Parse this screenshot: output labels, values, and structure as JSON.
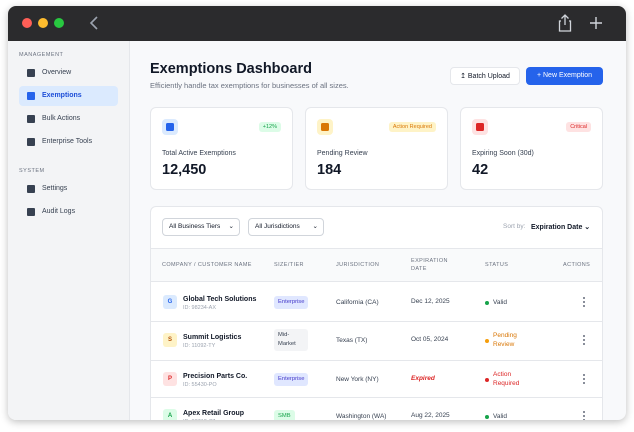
{
  "sidebar": {
    "sections": [
      {
        "title": "MANAGEMENT",
        "items": [
          "Overview",
          "Exemptions",
          "Bulk Actions",
          "Enterprise Tools"
        ]
      },
      {
        "title": "SYSTEM",
        "items": [
          "Settings",
          "Audit Logs"
        ]
      }
    ]
  },
  "header": {
    "title": "Exemptions Dashboard",
    "subtitle": "Efficiently handle tax exemptions for businesses of all sizes.",
    "batch_button": "Batch Upload",
    "new_button": "New Exemption"
  },
  "cards": [
    {
      "badge": "+12%",
      "badge_color": "#16a34a",
      "badge_bg": "#dcfce7",
      "icon_color": "#2563eb",
      "icon_bg": "#dbeafe",
      "label": "Total Active Exemptions",
      "value": "12,450"
    },
    {
      "badge": "Action Required",
      "badge_color": "#d97706",
      "badge_bg": "#fef3c7",
      "icon_color": "#d97706",
      "icon_bg": "#fef3c7",
      "label": "Pending Review",
      "value": "184"
    },
    {
      "badge": "Critical",
      "badge_color": "#dc2626",
      "badge_bg": "#fee2e2",
      "icon_color": "#dc2626",
      "icon_bg": "#fee2e2",
      "label": "Expiring Soon (30d)",
      "value": "42"
    }
  ],
  "filters": {
    "tier": "All Business Tiers",
    "jurisdiction": "All Jurisdictions",
    "sort_label": "Sort by:",
    "sort_value": "Expiration Date"
  },
  "table": {
    "columns": [
      "COMPANY / CUSTOMER NAME",
      "SIZE/TIER",
      "JURISDICTION",
      "EXPIRATION DATE",
      "STATUS",
      "ACTIONS"
    ],
    "rows": [
      {
        "initial": "G",
        "avatar_color": "#2563eb",
        "avatar_bg": "#dbeafe",
        "name": "Global Tech Solutions",
        "id": "ID: 98234-AX",
        "tier": "Enterprise",
        "tier_color": "#4338ca",
        "tier_bg": "#e0e7ff",
        "jurisdiction": "California (CA)",
        "expiration": "Dec 12, 2025",
        "expiration_color": "#374151",
        "status": "Valid",
        "status_color": "#16a34a",
        "status_text_color": "#374151"
      },
      {
        "initial": "S",
        "avatar_color": "#b45309",
        "avatar_bg": "#fef3c7",
        "name": "Summit Logistics",
        "id": "ID: 11092-TY",
        "tier": "Mid-Market",
        "tier_color": "#374151",
        "tier_bg": "#f3f4f6",
        "jurisdiction": "Texas (TX)",
        "expiration": "Oct 05, 2024",
        "expiration_color": "#374151",
        "status": "Pending Review",
        "status_color": "#f59e0b",
        "status_text_color": "#d97706"
      },
      {
        "initial": "P",
        "avatar_color": "#dc2626",
        "avatar_bg": "#fee2e2",
        "name": "Precision Parts Co.",
        "id": "ID: 55430-PO",
        "tier": "Enterprise",
        "tier_color": "#4338ca",
        "tier_bg": "#e0e7ff",
        "jurisdiction": "New York (NY)",
        "expiration": "Expired",
        "expiration_color": "#dc2626",
        "status": "Action Required",
        "status_color": "#dc2626",
        "status_text_color": "#dc2626"
      },
      {
        "initial": "A",
        "avatar_color": "#16a34a",
        "avatar_bg": "#dcfce7",
        "name": "Apex Retail Group",
        "id": "ID: 88712-ZZ",
        "tier": "SMB",
        "tier_color": "#16a34a",
        "tier_bg": "#dcfce7",
        "jurisdiction": "Washington (WA)",
        "expiration": "Aug 22, 2025",
        "expiration_color": "#374151",
        "status": "Valid",
        "status_color": "#16a34a",
        "status_text_color": "#374151"
      }
    ]
  }
}
